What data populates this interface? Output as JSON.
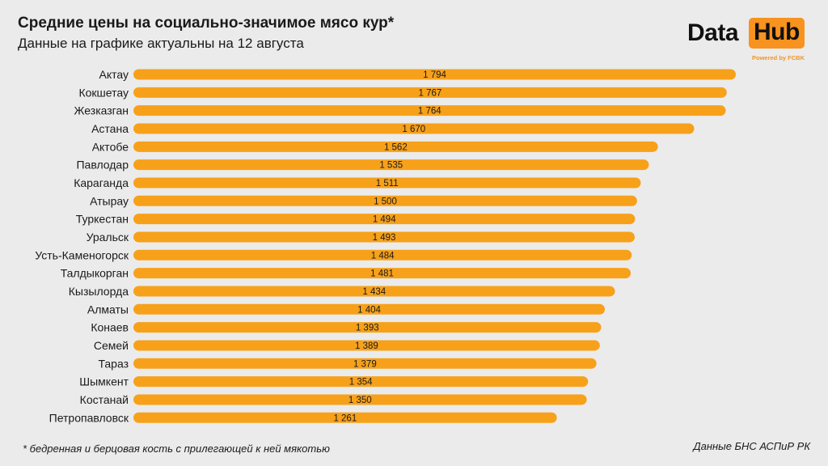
{
  "header": {
    "title": "Средние цены на социально-значимое мясо кур*",
    "subtitle": "Данные на графике актуальны на 12 августа"
  },
  "logo": {
    "word1": "Data",
    "word2": "Hub",
    "tagline": "Powered by FCBK"
  },
  "footer": {
    "footnote": "* бедренная и берцовая кость с прилегающей к ней мякотью",
    "source": "Данные БНС АСПиР РК"
  },
  "colors": {
    "bar": "#f7a11a",
    "text": "#1a1a1a",
    "background": "#ebebeb",
    "brand": "#f7931e"
  },
  "chart_data": {
    "type": "bar",
    "orientation": "horizontal",
    "categories": [
      "Актау",
      "Кокшетау",
      "Жезказган",
      "Астана",
      "Актобе",
      "Павлодар",
      "Караганда",
      "Атырау",
      "Туркестан",
      "Уральск",
      "Усть-Каменогорск",
      "Талдыкорган",
      "Кызылорда",
      "Алматы",
      "Конаев",
      "Семей",
      "Тараз",
      "Шымкент",
      "Костанай",
      "Петропавловск"
    ],
    "values": [
      1794,
      1767,
      1764,
      1670,
      1562,
      1535,
      1511,
      1500,
      1494,
      1493,
      1484,
      1481,
      1434,
      1404,
      1393,
      1389,
      1379,
      1354,
      1350,
      1261
    ],
    "value_labels": [
      "1 794",
      "1 767",
      "1 764",
      "1 670",
      "1 562",
      "1 535",
      "1 511",
      "1 500",
      "1 494",
      "1 493",
      "1 484",
      "1 481",
      "1 434",
      "1 404",
      "1 393",
      "1 389",
      "1 379",
      "1 354",
      "1 350",
      "1 261"
    ],
    "title": "Средние цены на социально-значимое мясо кур*",
    "xlabel": "",
    "ylabel": "",
    "xlim": [
      0,
      1794
    ],
    "grid": false,
    "legend": "none"
  }
}
